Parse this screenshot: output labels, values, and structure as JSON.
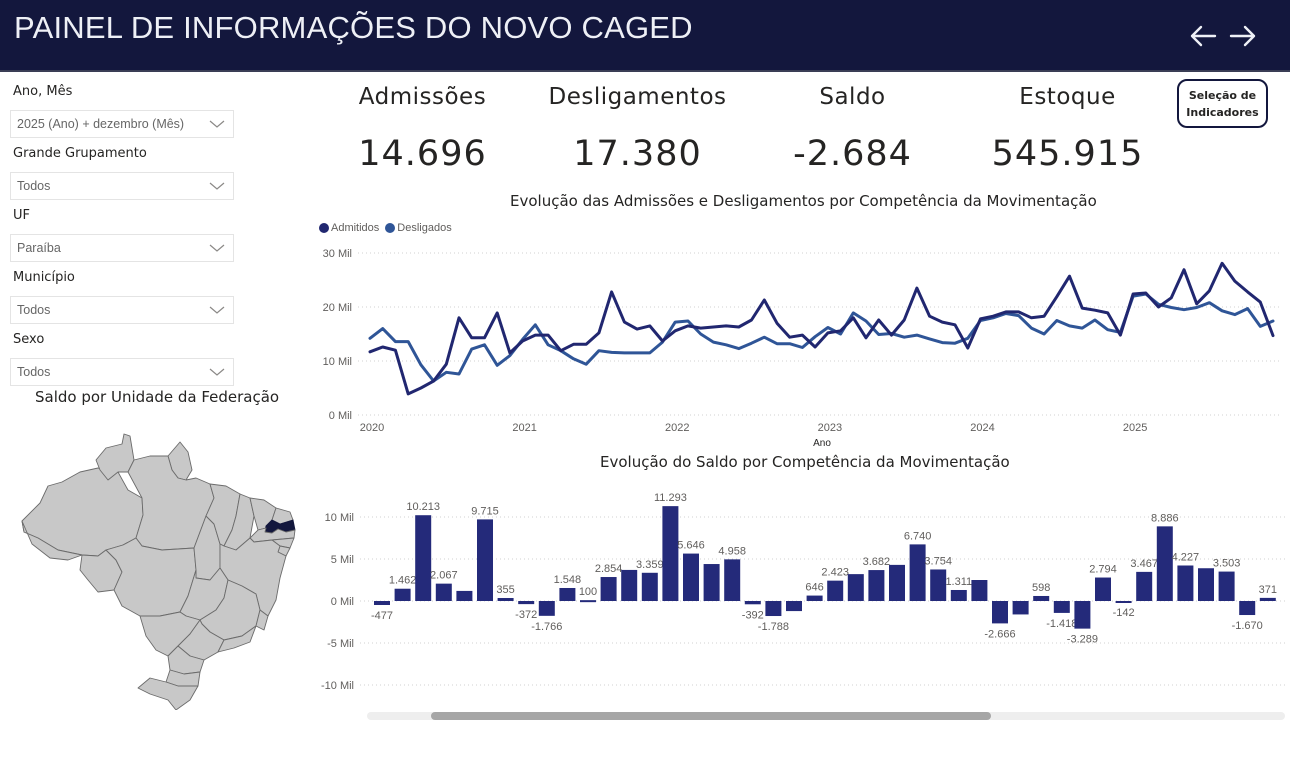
{
  "header": {
    "title": "PAINEL DE INFORMAÇÕES DO NOVO CAGED",
    "back_icon": "arrow-left-icon",
    "forward_icon": "arrow-right-icon"
  },
  "filters": [
    {
      "label": "Ano, Mês",
      "value": "2025 (Ano) + dezembro (Mês)"
    },
    {
      "label": "Grande Grupamento",
      "value": "Todos"
    },
    {
      "label": "UF",
      "value": "Paraíba"
    },
    {
      "label": "Município",
      "value": "Todos"
    },
    {
      "label": "Sexo",
      "value": "Todos"
    }
  ],
  "kpis": [
    {
      "title": "Admissões",
      "value": "14.696"
    },
    {
      "title": "Desligamentos",
      "value": "17.380"
    },
    {
      "title": "Saldo",
      "value": "-2.684"
    },
    {
      "title": "Estoque",
      "value": "545.915"
    }
  ],
  "selection_button": {
    "line1": "Seleção de",
    "line2": "Indicadores"
  },
  "map": {
    "title": "Saldo por Unidade da Federação",
    "highlighted_state": "Paraíba",
    "colors": {
      "base": "#c8c8c8",
      "highlight": "#13173d",
      "border": "#6b6b6b"
    }
  },
  "chart_data": [
    {
      "type": "line",
      "title": "Evolução das Admissões e Desligamentos por Competência da Movimentação",
      "xlabel": "Ano",
      "ylabel": "",
      "x_tick_labels": [
        "2020",
        "2021",
        "2022",
        "2023",
        "2024",
        "2025"
      ],
      "y_tick_labels": [
        "0 Mil",
        "10 Mil",
        "20 Mil",
        "30 Mil"
      ],
      "ylim": [
        0,
        30
      ],
      "y_unit": "Mil",
      "grid": true,
      "legend_position": "top-left",
      "x_start": "2020-01",
      "x_end": "2025-12",
      "series": [
        {
          "name": "Admitidos",
          "color": "#212770",
          "values": [
            11.7,
            12.6,
            12.0,
            3.9,
            5.0,
            6.3,
            9.4,
            18.0,
            14.3,
            14.3,
            18.9,
            11.5,
            13.7,
            14.8,
            14.8,
            11.9,
            13.1,
            13.1,
            15.2,
            22.8,
            17.2,
            15.9,
            16.5,
            13.7,
            15.6,
            16.5,
            16.1,
            16.3,
            16.5,
            16.3,
            17.6,
            21.3,
            17.0,
            14.4,
            14.8,
            12.6,
            15.2,
            15.6,
            18.0,
            14.3,
            17.6,
            14.8,
            17.6,
            23.5,
            18.3,
            17.2,
            16.7,
            12.4,
            17.8,
            18.3,
            19.1,
            19.1,
            18.0,
            18.3,
            21.9,
            25.7,
            19.8,
            19.4,
            18.9,
            14.8,
            22.4,
            22.6,
            20.0,
            21.7,
            26.9,
            20.6,
            23.0,
            28.1,
            24.8,
            22.8,
            20.9,
            14.7
          ]
        },
        {
          "name": "Desligados",
          "color": "#2f5597",
          "values": [
            14.2,
            16.0,
            13.6,
            13.6,
            9.3,
            6.3,
            7.9,
            7.6,
            12.2,
            13.0,
            9.2,
            11.0,
            14.0,
            16.7,
            13.0,
            11.9,
            10.4,
            9.4,
            11.9,
            11.6,
            11.5,
            11.5,
            11.5,
            13.5,
            17.2,
            17.4,
            15.0,
            13.5,
            13.0,
            12.3,
            13.3,
            14.4,
            13.2,
            13.2,
            12.5,
            14.5,
            16.2,
            15.0,
            18.9,
            17.4,
            14.9,
            15.1,
            14.4,
            14.8,
            14.1,
            13.4,
            13.3,
            14.2,
            17.5,
            18.0,
            18.8,
            18.4,
            16.1,
            15.0,
            17.5,
            16.5,
            16.1,
            17.6,
            15.8,
            15.3,
            22.0,
            22.4,
            20.5,
            19.9,
            19.5,
            19.9,
            20.8,
            19.3,
            18.6,
            19.7,
            16.4,
            17.4
          ]
        }
      ]
    },
    {
      "type": "bar",
      "title": "Evolução do Saldo por Competência da Movimentação",
      "xlabel": "",
      "ylabel": "",
      "y_tick_labels": [
        "-10 Mil",
        "-5 Mil",
        "0 Mil",
        "5 Mil",
        "10 Mil"
      ],
      "ylim": [
        -10000,
        12000
      ],
      "grid": true,
      "bar_color": "#242a7a",
      "values": [
        -477,
        1462,
        10213,
        2067,
        1200,
        9715,
        355,
        -372,
        -1766,
        1548,
        100,
        2854,
        3700,
        3359,
        11293,
        5646,
        4400,
        4958,
        -392,
        -1788,
        -1200,
        646,
        2423,
        3200,
        3682,
        4300,
        6740,
        3754,
        1311,
        2500,
        -2666,
        -1600,
        598,
        -1418,
        -3289,
        2794,
        -142,
        3467,
        8886,
        4227,
        3900,
        3503,
        -1670,
        371
      ],
      "data_labels": [
        "-477",
        "1.462",
        "10.213",
        "2.067",
        "",
        "9.715",
        "355",
        "-372",
        "-1.766",
        "1.548",
        "100",
        "2.854",
        "",
        "3.359",
        "11.293",
        "5.646",
        "",
        "4.958",
        "-392",
        "-1.788",
        "",
        "646",
        "2.423",
        "",
        "3.682",
        "",
        "6.740",
        "3.754",
        "1.311",
        "",
        "-2.666",
        "",
        "598",
        "-1.418",
        "-3.289",
        "2.794",
        "-142",
        "3.467",
        "8.886",
        "4.227",
        "",
        "3.503",
        "-1.670",
        "371"
      ],
      "scrollbar": {
        "visible_fraction": 0.61,
        "position_fraction": 0.07
      }
    }
  ]
}
